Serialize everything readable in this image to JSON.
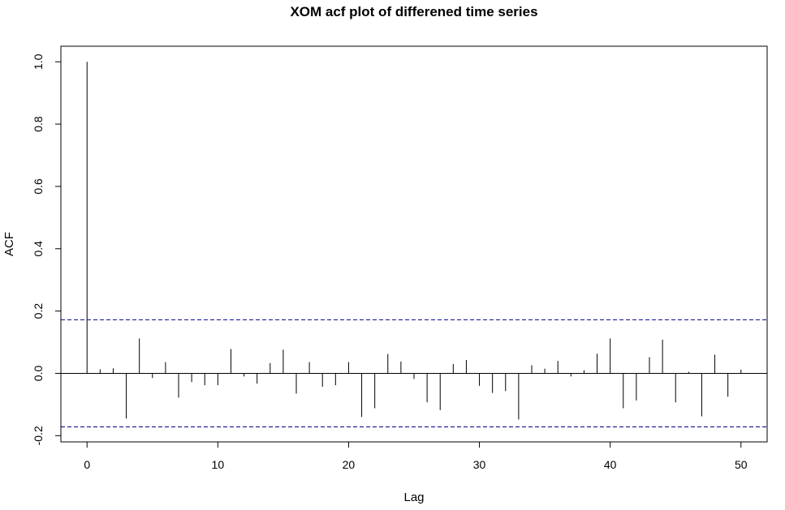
{
  "chart_data": {
    "type": "bar",
    "title": "XOM acf plot of differened time series",
    "xlabel": "Lag",
    "ylabel": "ACF",
    "xlim": [
      -2,
      52
    ],
    "ylim": [
      -0.22,
      1.05
    ],
    "xticks": [
      0,
      10,
      20,
      30,
      40,
      50
    ],
    "xtick_labels": [
      "0",
      "10",
      "20",
      "30",
      "40",
      "50"
    ],
    "yticks": [
      -0.2,
      0.0,
      0.2,
      0.4,
      0.6,
      0.8,
      1.0
    ],
    "ytick_labels": [
      "-0.2",
      "0.0",
      "0.2",
      "0.4",
      "0.6",
      "0.8",
      "1.0"
    ],
    "confidence_bounds": [
      0.172,
      -0.172
    ],
    "confidence_color": "#00008b",
    "zero_line": true,
    "grid": false,
    "lags": [
      0,
      1,
      2,
      3,
      4,
      5,
      6,
      7,
      8,
      9,
      10,
      11,
      12,
      13,
      14,
      15,
      16,
      17,
      18,
      19,
      20,
      21,
      22,
      23,
      24,
      25,
      26,
      27,
      28,
      29,
      30,
      31,
      32,
      33,
      34,
      35,
      36,
      37,
      38,
      39,
      40,
      41,
      42,
      43,
      44,
      45,
      46,
      47,
      48,
      49,
      50
    ],
    "values": [
      1.0,
      0.013,
      0.016,
      -0.145,
      0.112,
      -0.015,
      0.036,
      -0.078,
      -0.028,
      -0.038,
      -0.038,
      0.078,
      -0.01,
      -0.033,
      0.033,
      0.076,
      -0.065,
      0.036,
      -0.043,
      -0.038,
      0.036,
      -0.14,
      -0.112,
      0.062,
      0.038,
      -0.018,
      -0.093,
      -0.118,
      0.03,
      0.043,
      -0.04,
      -0.063,
      -0.057,
      -0.148,
      0.026,
      0.015,
      0.04,
      -0.01,
      0.01,
      0.063,
      0.112,
      -0.112,
      -0.087,
      0.052,
      0.108,
      -0.093,
      0.005,
      -0.138,
      0.06,
      -0.075,
      0.012
    ]
  }
}
